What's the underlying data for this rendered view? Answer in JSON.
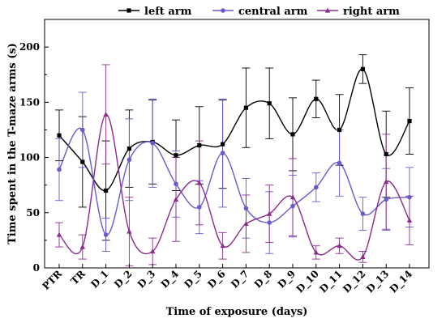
{
  "chart_data": {
    "type": "line",
    "title": "",
    "xlabel": "Time of exposure (days)",
    "ylabel": "Time spent in the T-maze arms (s)",
    "ylim": [
      0,
      225
    ],
    "yticks": [
      0,
      50,
      100,
      150,
      200
    ],
    "grid": false,
    "legend_position": "top",
    "categories": [
      "PTR",
      "TR",
      "D_1",
      "D_2",
      "D_3",
      "D_4",
      "D_5",
      "D_6",
      "D_7",
      "D_8",
      "D_9",
      "D_10",
      "D_11",
      "D_12",
      "D_13",
      "D_14"
    ],
    "series": [
      {
        "name": "left arm",
        "color": "#000000",
        "marker": "square",
        "values": [
          120,
          96,
          70,
          108,
          114,
          102,
          111,
          112,
          145,
          149,
          121,
          153,
          125,
          180,
          103,
          133
        ],
        "errors": [
          23,
          41,
          45,
          35,
          38,
          32,
          35,
          40,
          36,
          32,
          33,
          17,
          32,
          13,
          39,
          30
        ]
      },
      {
        "name": "central arm",
        "color": "#6a5acd",
        "marker": "circle",
        "values": [
          89,
          125,
          30,
          98,
          113,
          76,
          55,
          104,
          54,
          41,
          56,
          73,
          95,
          49,
          62,
          64
        ],
        "errors": [
          28,
          34,
          15,
          37,
          40,
          30,
          24,
          49,
          27,
          28,
          28,
          13,
          30,
          15,
          28,
          27
        ]
      },
      {
        "name": "right arm",
        "color": "#8b2c8b",
        "marker": "triangle",
        "values": [
          30,
          19,
          139,
          33,
          15,
          62,
          77,
          20,
          40,
          49,
          64,
          14,
          20,
          10,
          78,
          43
        ],
        "errors": [
          11,
          11,
          45,
          31,
          12,
          38,
          38,
          12,
          26,
          26,
          35,
          6,
          7,
          5,
          43,
          22
        ]
      }
    ]
  }
}
